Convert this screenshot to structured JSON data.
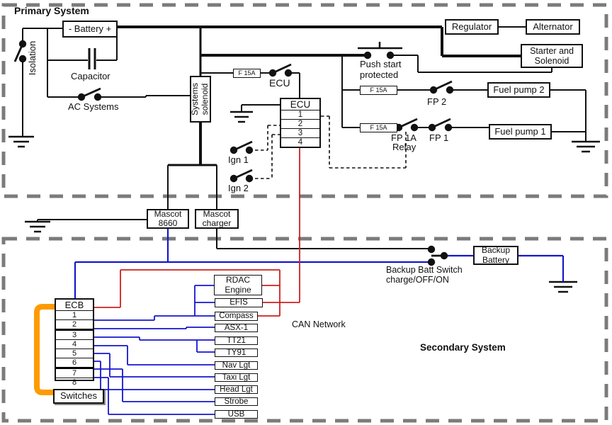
{
  "titles": {
    "primary": "Primary System",
    "secondary": "Secondary System"
  },
  "boxes": {
    "battery": "- Battery +",
    "regulator": "Regulator",
    "alternator": "Alternator",
    "starter": "Starter and\nSolenoid",
    "fuel_pump_2": "Fuel pump 2",
    "fuel_pump_1": "Fuel pump 1",
    "systems_solenoid": "Systems\nsolenoid",
    "mascot_8660": "Mascot\n8660",
    "mascot_charger": "Mascot\ncharger",
    "backup_battery": "Backup\nBattery",
    "switches": "Switches"
  },
  "fuses": {
    "ecu": "F 15A",
    "fp2": "F 15A",
    "fp1": "F 15A"
  },
  "labels": {
    "isolation": "Isolation",
    "capacitor": "Capacitor",
    "ac_systems": "AC Systems",
    "ecu_switch": "ECU",
    "push_start": "Push start\nprotected",
    "fp2": "FP 2",
    "fp1a": "FP 1A",
    "fp1a_relay": "Relay",
    "fp1": "FP 1",
    "ign1": "Ign 1",
    "ign2": "Ign 2",
    "backup_switch": "Backup Batt Switch",
    "backup_switch_modes": "charge/OFF/ON",
    "can_network": "CAN Network"
  },
  "ecu_connector": {
    "title": "ECU",
    "pins": [
      "1",
      "2",
      "3",
      "4"
    ]
  },
  "ecb": {
    "title": "ECB",
    "pins": [
      "1",
      "2",
      "3",
      "4",
      "5",
      "6",
      "7",
      "8"
    ]
  },
  "devices": [
    "RDAC\nEngine",
    "EFIS",
    "Compass",
    "ASX-1",
    "TT21",
    "TY91",
    "Nav Lgt",
    "Taxi Lgt",
    "Head Lgt",
    "Strobe",
    "USB"
  ],
  "colors": {
    "wire_black": "#111111",
    "wire_blue": "#1616cf",
    "wire_red": "#cc2020",
    "wire_orange": "#ff9a00",
    "border_gray": "#7b7b7b"
  }
}
